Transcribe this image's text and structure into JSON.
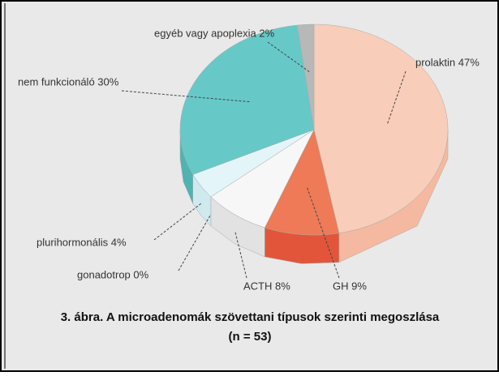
{
  "chart_data": {
    "type": "pie",
    "categories": [
      "prolaktin 47%",
      "GH 9%",
      "ACTH 8%",
      "gonadotrop 0%",
      "plurihormonális 4%",
      "nem funkcionáló 30%",
      "egyéb vagy apoplexia 2%"
    ],
    "values": [
      47,
      9,
      8,
      0,
      4,
      30,
      2
    ],
    "colors": [
      "#f8cdb9",
      "#ee7a58",
      "#f7f7f7",
      "#dff0f4",
      "#e3f5f8",
      "#66c9c7",
      "#b8b8b8"
    ],
    "side_colors": [
      "#f4b9a0",
      "#e2553a",
      "#e2e2e2",
      "#cde6ec",
      "#cfe9ee",
      "#4fb3b2",
      "#9a9a9a"
    ],
    "title": [
      "3. ábra. A microadenomák szövettani típusok szerinti megoszlása",
      "(n = 53)"
    ]
  }
}
